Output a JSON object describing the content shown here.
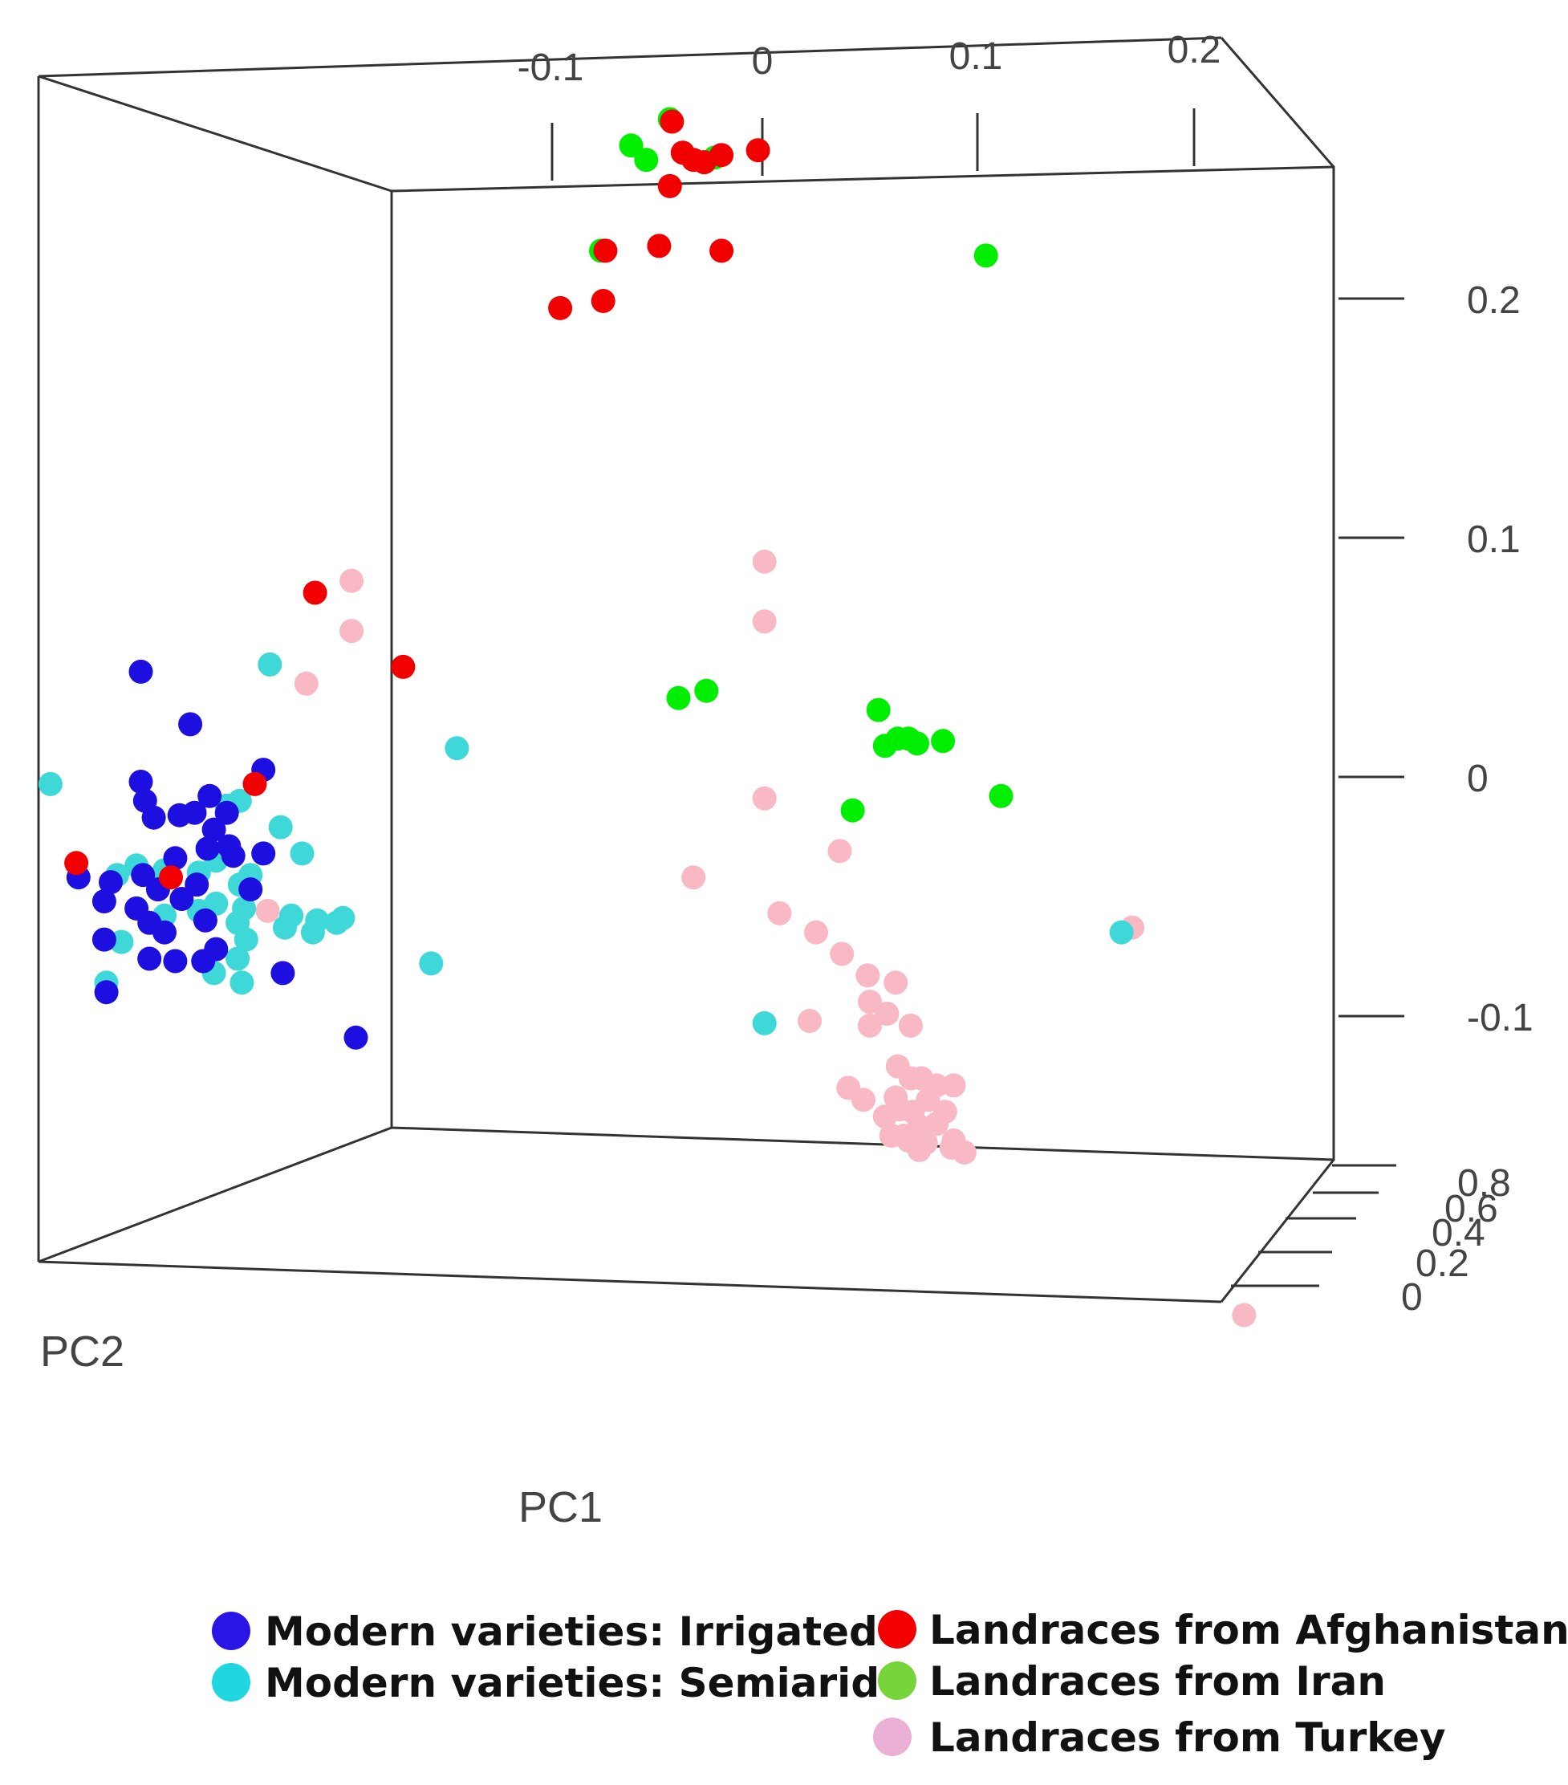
{
  "chart_data": {
    "type": "scatter",
    "projection": "3d",
    "title": "",
    "xlabel": "PC1",
    "ylabel": "PC2",
    "zlabel": "",
    "axes": {
      "top": {
        "ticks": [
          "-0.1",
          "0",
          "0.1",
          "0.2"
        ],
        "values": [
          -0.1,
          0,
          0.1,
          0.2
        ]
      },
      "right": {
        "ticks": [
          "0.2",
          "0.1",
          "0",
          "-0.1"
        ],
        "values": [
          0.2,
          0.1,
          0,
          -0.1
        ]
      },
      "depth": {
        "ticks": [
          "0",
          "0.2",
          "0.4",
          "0.6",
          "0.8"
        ],
        "values": [
          0,
          0.2,
          0.4,
          0.6,
          0.8
        ]
      }
    },
    "legend_position": "bottom",
    "series": [
      {
        "name": "Modern varieties: Irrigated",
        "color": "#1c0fe0",
        "points": [
          [
            -0.289,
            0.044
          ],
          [
            -0.266,
            0.022
          ],
          [
            -0.232,
            0.003
          ],
          [
            -0.289,
            -0.002
          ],
          [
            -0.283,
            -0.017
          ],
          [
            -0.288,
            -0.041
          ],
          [
            -0.318,
            -0.042
          ],
          [
            -0.303,
            -0.044
          ],
          [
            -0.264,
            -0.015
          ],
          [
            -0.255,
            -0.022
          ],
          [
            -0.257,
            -0.008
          ],
          [
            -0.249,
            -0.015
          ],
          [
            -0.271,
            -0.016
          ],
          [
            -0.287,
            -0.01
          ],
          [
            -0.248,
            -0.029
          ],
          [
            -0.273,
            -0.034
          ],
          [
            -0.258,
            -0.03
          ],
          [
            -0.246,
            -0.033
          ],
          [
            -0.232,
            -0.032
          ],
          [
            -0.263,
            -0.045
          ],
          [
            -0.281,
            -0.047
          ],
          [
            -0.27,
            -0.051
          ],
          [
            -0.291,
            -0.055
          ],
          [
            -0.306,
            -0.052
          ],
          [
            -0.285,
            -0.061
          ],
          [
            -0.278,
            -0.065
          ],
          [
            -0.259,
            -0.06
          ],
          [
            -0.238,
            -0.047
          ],
          [
            -0.306,
            -0.068
          ],
          [
            -0.285,
            -0.076
          ],
          [
            -0.273,
            -0.077
          ],
          [
            -0.26,
            -0.077
          ],
          [
            -0.254,
            -0.072
          ],
          [
            -0.305,
            -0.09
          ],
          [
            -0.223,
            -0.082
          ],
          [
            -0.189,
            -0.109
          ]
        ]
      },
      {
        "name": "Modern varieties: Semiarid",
        "color": "#3ed8d8",
        "points": [
          [
            -0.331,
            -0.003
          ],
          [
            -0.229,
            0.047
          ],
          [
            -0.142,
            0.012
          ],
          [
            -0.243,
            -0.01
          ],
          [
            -0.249,
            -0.012
          ],
          [
            -0.224,
            -0.021
          ],
          [
            -0.214,
            -0.032
          ],
          [
            -0.238,
            -0.041
          ],
          [
            -0.243,
            -0.045
          ],
          [
            -0.254,
            -0.035
          ],
          [
            -0.262,
            -0.04
          ],
          [
            -0.291,
            -0.037
          ],
          [
            -0.278,
            -0.039
          ],
          [
            -0.3,
            -0.041
          ],
          [
            -0.254,
            -0.053
          ],
          [
            -0.262,
            -0.056
          ],
          [
            -0.241,
            -0.055
          ],
          [
            -0.244,
            -0.061
          ],
          [
            -0.219,
            -0.058
          ],
          [
            -0.222,
            -0.063
          ],
          [
            -0.278,
            -0.058
          ],
          [
            -0.281,
            -0.061
          ],
          [
            -0.24,
            -0.068
          ],
          [
            -0.298,
            -0.069
          ],
          [
            -0.244,
            -0.076
          ],
          [
            -0.242,
            -0.086
          ],
          [
            -0.207,
            -0.06
          ],
          [
            -0.209,
            -0.065
          ],
          [
            -0.198,
            -0.061
          ],
          [
            -0.195,
            -0.059
          ],
          [
            -0.154,
            -0.078
          ],
          [
            -0.305,
            -0.086
          ],
          [
            -0.255,
            -0.082
          ],
          [
            0.001,
            -0.103
          ],
          [
            0.167,
            -0.065
          ]
        ]
      },
      {
        "name": "Landraces from Afghanistan",
        "color": "#f20000",
        "points": [
          [
            -0.042,
            0.274
          ],
          [
            -0.037,
            0.261
          ],
          [
            -0.032,
            0.258
          ],
          [
            -0.027,
            0.257
          ],
          [
            -0.019,
            0.26
          ],
          [
            -0.002,
            0.262
          ],
          [
            -0.043,
            0.247
          ],
          [
            -0.048,
            0.222
          ],
          [
            -0.019,
            0.22
          ],
          [
            -0.073,
            0.22
          ],
          [
            -0.074,
            0.199
          ],
          [
            -0.094,
            0.196
          ],
          [
            -0.208,
            0.077
          ],
          [
            -0.167,
            0.046
          ],
          [
            -0.236,
            -0.003
          ],
          [
            -0.319,
            -0.036
          ],
          [
            -0.275,
            -0.042
          ]
        ]
      },
      {
        "name": "Landraces from Iran",
        "color": "#00ee00",
        "points": [
          [
            -0.061,
            0.264
          ],
          [
            -0.054,
            0.258
          ],
          [
            -0.043,
            0.275
          ],
          [
            -0.022,
            0.259
          ],
          [
            -0.075,
            0.22
          ],
          [
            0.104,
            0.218
          ],
          [
            -0.039,
            0.033
          ],
          [
            -0.026,
            0.036
          ],
          [
            0.054,
            0.028
          ],
          [
            0.057,
            0.013
          ],
          [
            0.063,
            0.016
          ],
          [
            0.068,
            0.016
          ],
          [
            0.072,
            0.014
          ],
          [
            0.084,
            0.015
          ],
          [
            0.111,
            -0.008
          ],
          [
            0.042,
            -0.014
          ]
        ]
      },
      {
        "name": "Landraces from Turkey",
        "color": "#f8b8c4",
        "points": [
          [
            -0.191,
            0.082
          ],
          [
            -0.191,
            0.061
          ],
          [
            -0.212,
            0.039
          ],
          [
            -0.23,
            -0.056
          ],
          [
            0.001,
            0.09
          ],
          [
            0.001,
            0.065
          ],
          [
            0.001,
            -0.009
          ],
          [
            -0.032,
            -0.042
          ],
          [
            0.036,
            -0.031
          ],
          [
            0.008,
            -0.057
          ],
          [
            0.025,
            -0.065
          ],
          [
            0.037,
            -0.074
          ],
          [
            0.049,
            -0.083
          ],
          [
            0.062,
            -0.086
          ],
          [
            0.05,
            -0.094
          ],
          [
            0.058,
            -0.099
          ],
          [
            0.069,
            -0.104
          ],
          [
            0.05,
            -0.104
          ],
          [
            0.022,
            -0.102
          ],
          [
            0.063,
            -0.121
          ],
          [
            0.069,
            -0.126
          ],
          [
            0.074,
            -0.126
          ],
          [
            0.081,
            -0.129
          ],
          [
            0.089,
            -0.129
          ],
          [
            0.04,
            -0.13
          ],
          [
            0.047,
            -0.135
          ],
          [
            0.062,
            -0.134
          ],
          [
            0.064,
            -0.139
          ],
          [
            0.07,
            -0.14
          ],
          [
            0.077,
            -0.135
          ],
          [
            0.085,
            -0.14
          ],
          [
            0.057,
            -0.142
          ],
          [
            0.073,
            -0.146
          ],
          [
            0.081,
            -0.145
          ],
          [
            0.066,
            -0.15
          ],
          [
            0.068,
            -0.152
          ],
          [
            0.076,
            -0.153
          ],
          [
            0.089,
            -0.152
          ],
          [
            0.073,
            -0.156
          ],
          [
            0.088,
            -0.155
          ],
          [
            0.06,
            -0.15
          ],
          [
            0.094,
            -0.157
          ],
          [
            0.172,
            -0.063
          ],
          [
            0.224,
            -0.225
          ]
        ]
      }
    ]
  }
}
